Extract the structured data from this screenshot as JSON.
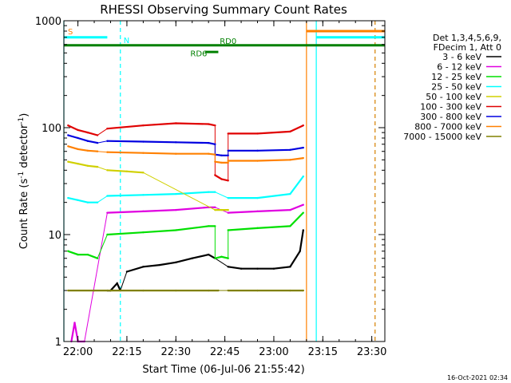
{
  "chart_data": {
    "type": "line",
    "title": "RHESSI Observing Summary Count Rates",
    "xlabel": "Start Time (06-Jul-06 21:55:42)",
    "ylabel_main": "Count Rate (s",
    "ylabel_sup1": "-1",
    "ylabel_mid": " detector",
    "ylabel_sup2": "-1",
    "ylabel_end": ")",
    "y_scale": "log",
    "ylim": [
      1,
      1000
    ],
    "xlim": [
      "21:55:42",
      "23:34:00"
    ],
    "x_ticks": [
      "22:00",
      "22:15",
      "22:30",
      "22:45",
      "23:00",
      "23:15",
      "23:30"
    ],
    "y_ticks": [
      "1",
      "10",
      "100",
      "1000"
    ],
    "legend_header": [
      "Det 1,3,4,5,6,9,",
      "FDecim 1, Att 0"
    ],
    "legend_position": "right",
    "footer_date": "16-Oct-2021 02:34",
    "annotations": {
      "saa_letter": "S",
      "night_letter": "N",
      "rd_upper": "RD0",
      "rd_lower": "RD6"
    },
    "series": [
      {
        "name": "3 - 6 keV",
        "color": "#000000",
        "segments": [
          {
            "x": [
              "22:09",
              "22:10",
              "22:12",
              "22:13"
            ],
            "y": [
              3,
              3,
              3.5,
              3
            ]
          },
          {
            "x": [
              "22:15",
              "22:20",
              "22:25",
              "22:30",
              "22:35",
              "22:40",
              "22:42"
            ],
            "y": [
              4.5,
              5,
              5.2,
              5.5,
              6,
              6.5,
              6
            ]
          },
          {
            "x": [
              "22:46",
              "22:50",
              "22:55",
              "23:00",
              "23:05",
              "23:08",
              "23:09"
            ],
            "y": [
              5,
              4.8,
              4.8,
              4.8,
              5,
              7,
              11
            ]
          }
        ]
      },
      {
        "name": "6 - 12 keV",
        "color": "#e000e0",
        "segments": [
          {
            "x": [
              "21:58",
              "21:59",
              "22:00",
              "22:02"
            ],
            "y": [
              1,
              1.5,
              1,
              1
            ]
          },
          {
            "x": [
              "22:09",
              "22:20",
              "22:30",
              "22:40",
              "22:42"
            ],
            "y": [
              16,
              16.5,
              17,
              18,
              18
            ]
          },
          {
            "x": [
              "22:46",
              "22:55",
              "23:05",
              "23:09"
            ],
            "y": [
              16,
              16.5,
              17,
              19
            ]
          }
        ]
      },
      {
        "name": "12 - 25 keV",
        "color": "#00e000",
        "segments": [
          {
            "x": [
              "21:57",
              "22:00",
              "22:03",
              "22:06"
            ],
            "y": [
              7,
              6.5,
              6.5,
              6
            ]
          },
          {
            "x": [
              "22:09",
              "22:20",
              "22:30",
              "22:40",
              "22:42"
            ],
            "y": [
              10,
              10.5,
              11,
              12,
              12
            ]
          },
          {
            "x": [
              "22:42",
              "22:44",
              "22:46"
            ],
            "y": [
              6,
              6.2,
              6
            ]
          },
          {
            "x": [
              "22:46",
              "22:55",
              "23:05",
              "23:09"
            ],
            "y": [
              11,
              11.5,
              12,
              16
            ]
          }
        ]
      },
      {
        "name": "25 - 50 keV",
        "color": "#00ffff",
        "segments": [
          {
            "x": [
              "21:57",
              "22:00",
              "22:03",
              "22:06"
            ],
            "y": [
              22,
              21,
              20,
              20
            ]
          },
          {
            "x": [
              "22:09",
              "22:20",
              "22:30",
              "22:40",
              "22:42"
            ],
            "y": [
              23,
              23.5,
              24,
              25,
              25
            ]
          },
          {
            "x": [
              "22:46",
              "22:55",
              "23:05",
              "23:09"
            ],
            "y": [
              22,
              22,
              24,
              35
            ]
          }
        ]
      },
      {
        "name": "50 - 100 keV",
        "color": "#d0d000",
        "segments": [
          {
            "x": [
              "21:57",
              "22:00",
              "22:03",
              "22:06"
            ],
            "y": [
              48,
              46,
              44,
              43
            ]
          },
          {
            "x": [
              "22:09",
              "22:15",
              "22:20"
            ],
            "y": [
              40,
              39,
              38
            ]
          },
          {
            "x": [
              "22:42",
              "22:44",
              "22:46"
            ],
            "y": [
              17,
              17,
              17
            ]
          }
        ]
      },
      {
        "name": "100 - 300 keV",
        "color": "#e00000",
        "segments": [
          {
            "x": [
              "21:57",
              "22:00",
              "22:03",
              "22:06"
            ],
            "y": [
              105,
              95,
              90,
              85
            ]
          },
          {
            "x": [
              "22:09",
              "22:20",
              "22:30",
              "22:40",
              "22:42"
            ],
            "y": [
              98,
              105,
              110,
              108,
              105
            ]
          },
          {
            "x": [
              "22:42",
              "22:44",
              "22:46"
            ],
            "y": [
              36,
              33,
              32
            ]
          },
          {
            "x": [
              "22:46",
              "22:55",
              "23:05",
              "23:09"
            ],
            "y": [
              88,
              88,
              92,
              105
            ]
          }
        ]
      },
      {
        "name": "300 - 800 keV",
        "color": "#0000e0",
        "segments": [
          {
            "x": [
              "21:57",
              "22:00",
              "22:03",
              "22:06"
            ],
            "y": [
              85,
              80,
              75,
              72
            ]
          },
          {
            "x": [
              "22:09",
              "22:20",
              "22:30",
              "22:40",
              "22:42"
            ],
            "y": [
              75,
              74,
              73,
              72,
              70
            ]
          },
          {
            "x": [
              "22:42",
              "22:44",
              "22:46"
            ],
            "y": [
              56,
              55,
              55
            ]
          },
          {
            "x": [
              "22:46",
              "22:55",
              "23:05",
              "23:09"
            ],
            "y": [
              61,
              61,
              62,
              65
            ]
          }
        ]
      },
      {
        "name": "800 - 7000 keV",
        "color": "#ff8000",
        "segments": [
          {
            "x": [
              "21:57",
              "22:00",
              "22:03",
              "22:06"
            ],
            "y": [
              67,
              63,
              61,
              60
            ]
          },
          {
            "x": [
              "22:09",
              "22:20",
              "22:30",
              "22:40",
              "22:42"
            ],
            "y": [
              59,
              58,
              57,
              57,
              56
            ]
          },
          {
            "x": [
              "22:42",
              "22:44",
              "22:46"
            ],
            "y": [
              48,
              47,
              47
            ]
          },
          {
            "x": [
              "22:46",
              "22:55",
              "23:05",
              "23:09"
            ],
            "y": [
              49,
              49,
              50,
              52
            ]
          }
        ]
      },
      {
        "name": "7000 - 15000 keV",
        "color": "#808000",
        "segments": [
          {
            "x": [
              "21:57",
              "22:05",
              "22:10",
              "22:20",
              "22:30",
              "22:40",
              "22:43"
            ],
            "y": [
              3,
              3,
              3,
              3,
              3,
              3,
              3
            ]
          },
          {
            "x": [
              "22:46",
              "22:55",
              "23:05",
              "23:09"
            ],
            "y": [
              3,
              3,
              3,
              3
            ]
          }
        ]
      }
    ],
    "flag_bars": [
      {
        "label": "SAA",
        "color": "#ff8000",
        "x_start": "23:10",
        "x_end": "23:34",
        "level": 800
      },
      {
        "label": "Night",
        "color": "#00ffff",
        "x_start": "21:55:42",
        "x_end": "22:09",
        "level": 700
      },
      {
        "label": "Night",
        "color": "#00ffff",
        "x_start": "23:13",
        "x_end": "23:34",
        "level": 700
      },
      {
        "label": "RD0",
        "color": "#008000",
        "x_start": "21:55:42",
        "x_end": "23:34",
        "level": 590
      },
      {
        "label": "RD6",
        "color": "#008000",
        "x_start": "22:39",
        "x_end": "22:43",
        "level": 510
      }
    ],
    "vertical_markers": [
      {
        "x": "21:55:42",
        "color": "#00ffff",
        "style": "solid"
      },
      {
        "x": "22:13",
        "color": "#00ffff",
        "style": "dashed"
      },
      {
        "x": "23:10",
        "color": "#ff8000",
        "style": "solid"
      },
      {
        "x": "23:13",
        "color": "#00ffff",
        "style": "solid"
      },
      {
        "x": "23:31",
        "color": "#00ffff",
        "style": "dashed"
      },
      {
        "x": "23:31",
        "color": "#ff8000",
        "style": "dashed"
      }
    ]
  }
}
